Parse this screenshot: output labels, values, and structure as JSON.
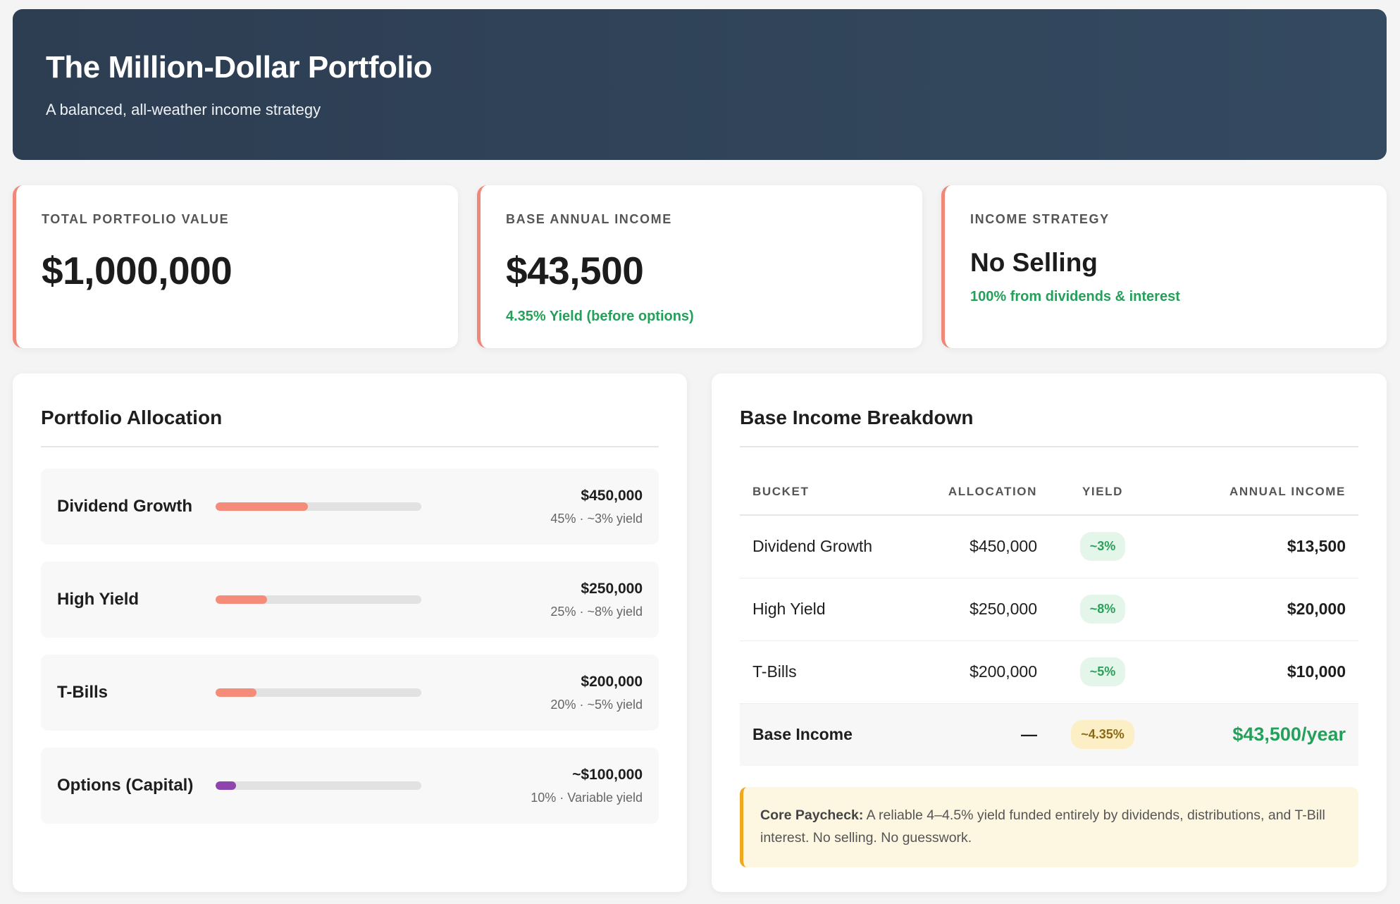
{
  "header": {
    "title": "The Million-Dollar Portfolio",
    "subtitle": "A balanced, all-weather income strategy"
  },
  "kpis": [
    {
      "label": "Total Portfolio Value",
      "value": "$1,000,000",
      "note": ""
    },
    {
      "label": "Base Annual Income",
      "value": "$43,500",
      "note": "4.35% Yield (before options)"
    },
    {
      "label": "Income Strategy",
      "value": "No Selling",
      "note": "100% from dividends & interest"
    }
  ],
  "allocation": {
    "title": "Portfolio Allocation",
    "items": [
      {
        "name": "Dividend Growth",
        "amount": "$450,000",
        "detail": "45% · ~3% yield",
        "pct": 45,
        "color": "#f58c7a"
      },
      {
        "name": "High Yield",
        "amount": "$250,000",
        "detail": "25% · ~8% yield",
        "pct": 25,
        "color": "#f58c7a"
      },
      {
        "name": "T-Bills",
        "amount": "$200,000",
        "detail": "20% · ~5% yield",
        "pct": 20,
        "color": "#f58c7a"
      },
      {
        "name": "Options (Capital)",
        "amount": "~$100,000",
        "detail": "10% · Variable yield",
        "pct": 10,
        "color": "#8e44ad"
      }
    ]
  },
  "income": {
    "title": "Base Income Breakdown",
    "columns": [
      "Bucket",
      "Allocation",
      "Yield",
      "Annual Income"
    ],
    "rows": [
      {
        "bucket": "Dividend Growth",
        "allocation": "$450,000",
        "yield": "~3%",
        "income": "$13,500"
      },
      {
        "bucket": "High Yield",
        "allocation": "$250,000",
        "yield": "~8%",
        "income": "$20,000"
      },
      {
        "bucket": "T-Bills",
        "allocation": "$200,000",
        "yield": "~5%",
        "income": "$10,000"
      }
    ],
    "total": {
      "bucket": "Base Income",
      "allocation": "—",
      "yield": "~4.35%",
      "income": "$43,500/year"
    },
    "callout": {
      "bold": "Core Paycheck:",
      "text": " A reliable 4–4.5% yield funded entirely by dividends, distributions, and T-Bill interest. No selling. No guesswork."
    }
  },
  "colors": {
    "header_bg": "#2d3d52",
    "accent": "#f08778",
    "green": "#24a05a",
    "options_purple": "#8e44ad",
    "callout_border": "#f0a820"
  }
}
